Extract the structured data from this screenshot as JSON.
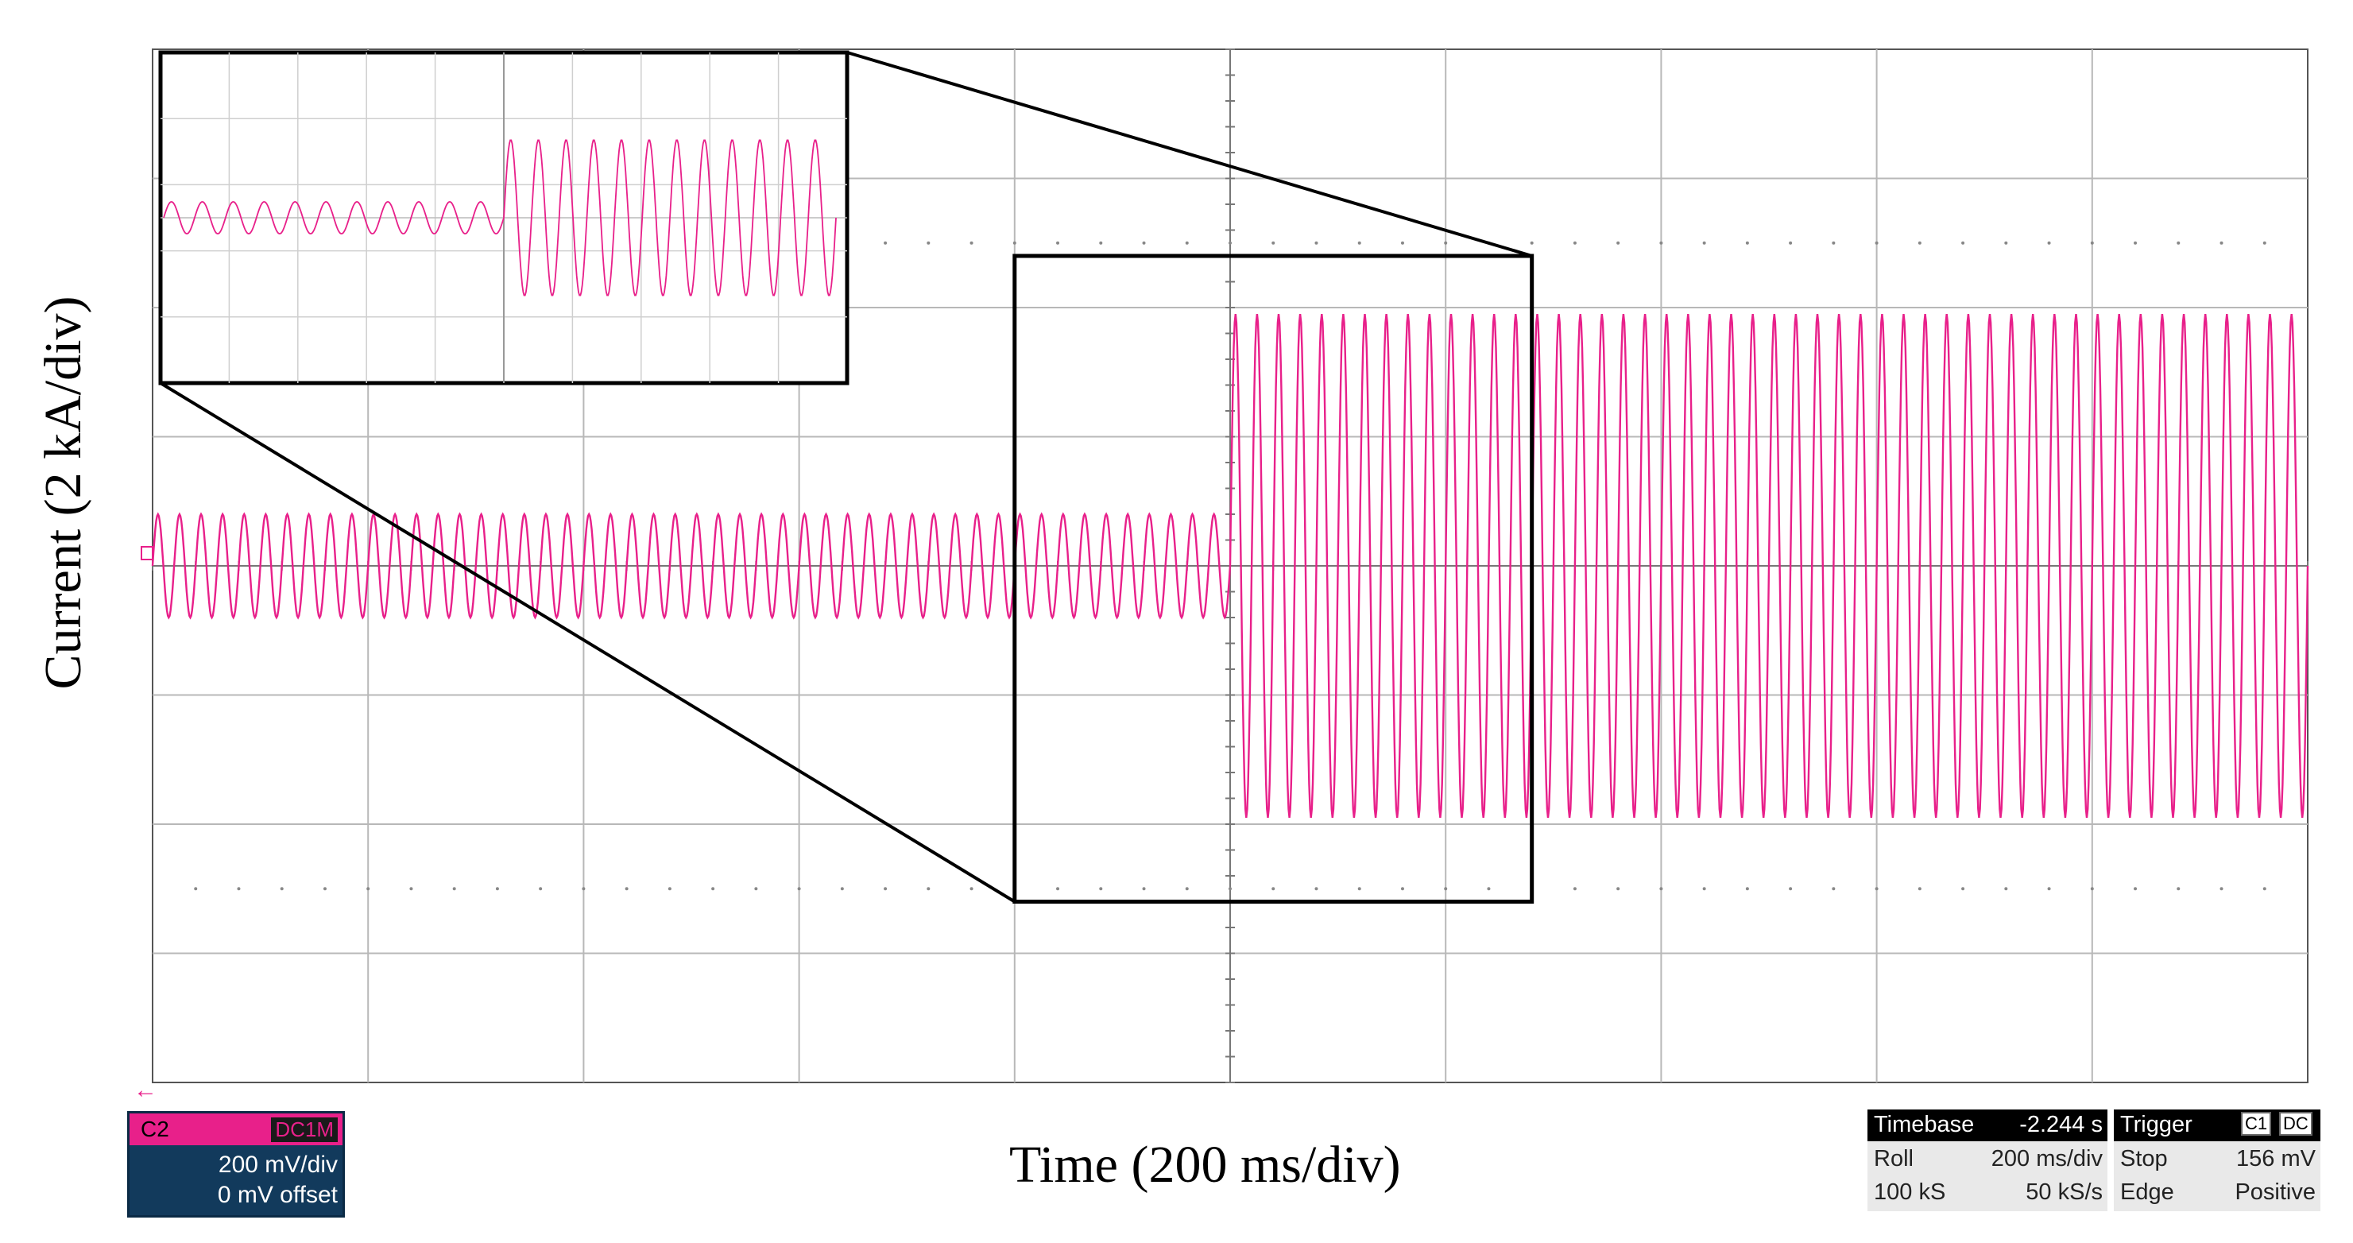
{
  "chart_data": {
    "type": "line",
    "ylabel": "Current (2 kA/div)",
    "xlabel": "Time (200 ms/div)",
    "x_divisions": 10,
    "y_divisions": 8,
    "grid": true,
    "series": [
      {
        "color": "#e8208a",
        "segments": [
          {
            "t_start_div": 0.0,
            "t_end_div": 5.0,
            "amplitude_div": 0.4,
            "cycles": 50
          },
          {
            "t_start_div": 5.0,
            "t_end_div": 10.0,
            "amplitude_div": 1.95,
            "cycles": 50
          }
        ]
      }
    ],
    "zoom": {
      "region_div": {
        "t_start": 4.0,
        "t_end": 6.4,
        "y_top": 2.4,
        "y_bottom": -2.6
      },
      "inset_position": "top-left",
      "inset_cycles_before": 11,
      "inset_cycles_after": 12
    }
  },
  "channel": {
    "name": "C2",
    "coupling": "DC1M",
    "scale": "200 mV/div",
    "offset": "0 mV offset",
    "ground_marker": "2"
  },
  "timebase": {
    "title": "Timebase",
    "value": "-2.244 s",
    "mode": "Roll",
    "scale": "200 ms/div",
    "samples": "100 kS",
    "rate": "50 kS/s"
  },
  "trigger": {
    "title": "Trigger",
    "source": "C1",
    "coupling": "DC",
    "state": "Stop",
    "level": "156 mV",
    "type": "Edge",
    "slope": "Positive"
  },
  "colors": {
    "trace": "#e8208a",
    "grid": "#b8b8b8",
    "frame": "#000000"
  }
}
